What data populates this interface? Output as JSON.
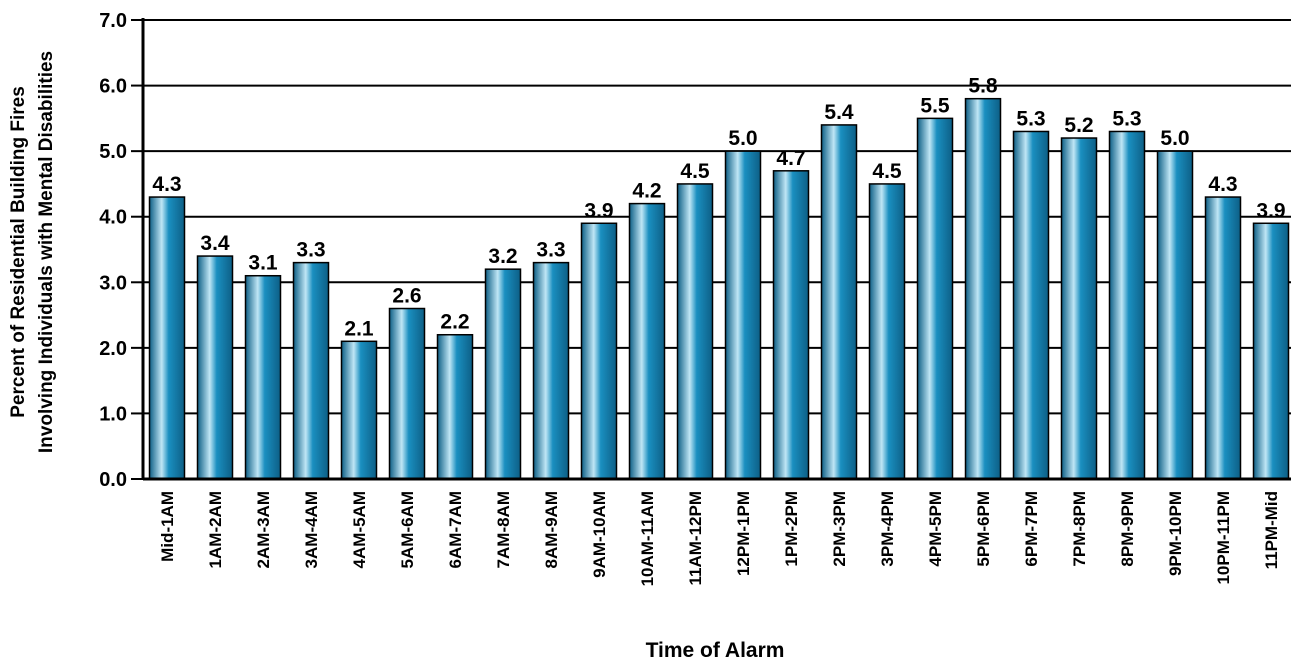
{
  "chart_data": {
    "type": "bar",
    "categories": [
      "Mid-1AM",
      "1AM-2AM",
      "2AM-3AM",
      "3AM-4AM",
      "4AM-5AM",
      "5AM-6AM",
      "6AM-7AM",
      "7AM-8AM",
      "8AM-9AM",
      "9AM-10AM",
      "10AM-11AM",
      "11AM-12PM",
      "12PM-1PM",
      "1PM-2PM",
      "2PM-3PM",
      "3PM-4PM",
      "4PM-5PM",
      "5PM-6PM",
      "6PM-7PM",
      "7PM-8PM",
      "8PM-9PM",
      "9PM-10PM",
      "10PM-11PM",
      "11PM-Mid"
    ],
    "values": [
      4.3,
      3.4,
      3.1,
      3.3,
      2.1,
      2.6,
      2.2,
      3.2,
      3.3,
      3.9,
      4.2,
      4.5,
      5.0,
      4.7,
      5.4,
      4.5,
      5.5,
      5.8,
      5.3,
      5.2,
      5.3,
      5.0,
      4.3,
      3.9
    ],
    "value_labels": [
      "4.3",
      "3.4",
      "3.1",
      "3.3",
      "2.1",
      "2.6",
      "2.2",
      "3.2",
      "3.3",
      "3.9",
      "4.2",
      "4.5",
      "5.0",
      "4.7",
      "5.4",
      "4.5",
      "5.5",
      "5.8",
      "5.3",
      "5.2",
      "5.3",
      "5.0",
      "4.3",
      "3.9"
    ],
    "title": "",
    "xlabel": "Time of Alarm",
    "ylabel_lines": [
      "Percent of Residential Building Fires",
      "Involving Individuals with Mental Disabilities"
    ],
    "ylim": [
      0,
      7
    ],
    "yticks": [
      "0.0",
      "1.0",
      "2.0",
      "3.0",
      "4.0",
      "5.0",
      "6.0",
      "7.0"
    ],
    "grid": true,
    "bar_color": "#1a8fc0",
    "bar_highlight": "#bfe6f5",
    "bar_dark": "#0d5f86"
  }
}
